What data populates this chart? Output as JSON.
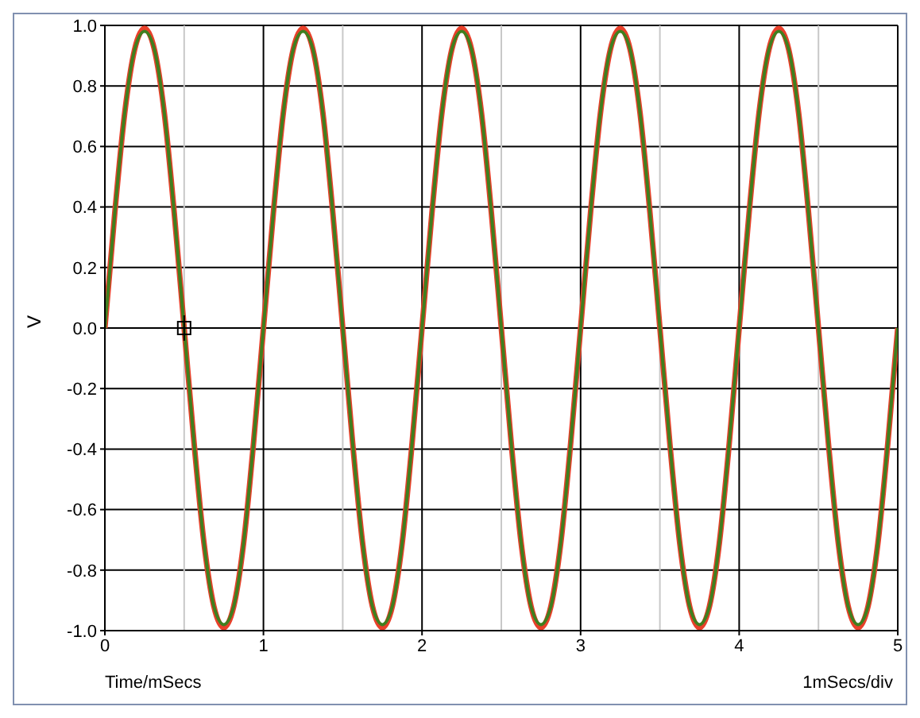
{
  "chart_data": {
    "type": "line",
    "xlabel": "Time/mSecs",
    "ylabel": "V",
    "annotations": [
      "1mSecs/div"
    ],
    "x": [
      0,
      0.0625,
      0.125,
      0.1875,
      0.25,
      0.3125,
      0.375,
      0.4375,
      0.5,
      0.5625,
      0.625,
      0.6875,
      0.75,
      0.8125,
      0.875,
      0.9375,
      1,
      1.0625,
      1.125,
      1.1875,
      1.25,
      1.3125,
      1.375,
      1.4375,
      1.5,
      1.5625,
      1.625,
      1.6875,
      1.75,
      1.8125,
      1.875,
      1.9375,
      2,
      2.0625,
      2.125,
      2.1875,
      2.25,
      2.3125,
      2.375,
      2.4375,
      2.5,
      2.5625,
      2.625,
      2.6875,
      2.75,
      2.8125,
      2.875,
      2.9375,
      3,
      3.0625,
      3.125,
      3.1875,
      3.25,
      3.3125,
      3.375,
      3.4375,
      3.5,
      3.5625,
      3.625,
      3.6875,
      3.75,
      3.8125,
      3.875,
      3.9375,
      4,
      4.0625,
      4.125,
      4.1875,
      4.25,
      4.3125,
      4.375,
      4.4375,
      4.5,
      4.5625,
      4.625,
      4.6875,
      4.75,
      4.8125,
      4.875,
      4.9375,
      5
    ],
    "series": [
      {
        "color": "#e8402a",
        "values": [
          0,
          0.38,
          0.71,
          0.92,
          0.99,
          0.92,
          0.71,
          0.38,
          0,
          -0.38,
          -0.71,
          -0.92,
          -0.99,
          -0.92,
          -0.71,
          -0.38,
          0,
          0.38,
          0.71,
          0.92,
          0.99,
          0.92,
          0.71,
          0.38,
          0,
          -0.38,
          -0.71,
          -0.92,
          -0.99,
          -0.92,
          -0.71,
          -0.38,
          0,
          0.38,
          0.71,
          0.92,
          0.99,
          0.92,
          0.71,
          0.38,
          0,
          -0.38,
          -0.71,
          -0.92,
          -0.99,
          -0.92,
          -0.71,
          -0.38,
          0,
          0.38,
          0.71,
          0.92,
          0.99,
          0.92,
          0.71,
          0.38,
          0,
          -0.38,
          -0.71,
          -0.92,
          -0.99,
          -0.92,
          -0.71,
          -0.38,
          0,
          0.38,
          0.71,
          0.92,
          0.99,
          0.92,
          0.71,
          0.38,
          0,
          -0.38,
          -0.71,
          -0.92,
          -0.99,
          -0.92,
          -0.71,
          -0.38,
          0
        ]
      },
      {
        "color": "#3f7f1f",
        "values": [
          0,
          0.38,
          0.71,
          0.92,
          0.98,
          0.92,
          0.71,
          0.38,
          0,
          -0.38,
          -0.71,
          -0.92,
          -0.98,
          -0.92,
          -0.71,
          -0.38,
          0,
          0.38,
          0.71,
          0.92,
          0.98,
          0.92,
          0.71,
          0.38,
          0,
          -0.38,
          -0.71,
          -0.92,
          -0.98,
          -0.92,
          -0.71,
          -0.38,
          0,
          0.38,
          0.71,
          0.92,
          0.98,
          0.92,
          0.71,
          0.38,
          0,
          -0.38,
          -0.71,
          -0.92,
          -0.98,
          -0.92,
          -0.71,
          -0.38,
          0,
          0.38,
          0.71,
          0.92,
          0.98,
          0.92,
          0.71,
          0.38,
          0,
          -0.38,
          -0.71,
          -0.92,
          -0.98,
          -0.92,
          -0.71,
          -0.38,
          0,
          0.38,
          0.71,
          0.92,
          0.98,
          0.92,
          0.71,
          0.38,
          0,
          -0.38,
          -0.71,
          -0.92,
          -0.98,
          -0.92,
          -0.71,
          -0.38,
          0
        ]
      }
    ],
    "xlim": [
      0,
      5
    ],
    "xticks": [
      0,
      1,
      2,
      3,
      4,
      5
    ],
    "ylim": [
      -1,
      1
    ],
    "yticks": [
      {
        "value": -1,
        "label": "-1.0"
      },
      {
        "value": -0.8,
        "label": "-0.8"
      },
      {
        "value": -0.6,
        "label": "-0.6"
      },
      {
        "value": -0.4,
        "label": "-0.4"
      },
      {
        "value": -0.2,
        "label": "-0.2"
      },
      {
        "value": 0,
        "label": "0.0"
      },
      {
        "value": 0.2,
        "label": "0.2"
      },
      {
        "value": 0.4,
        "label": "0.4"
      },
      {
        "value": 0.6,
        "label": "0.6"
      },
      {
        "value": 0.8,
        "label": "0.8"
      },
      {
        "value": 1,
        "label": "1.0"
      }
    ],
    "ref_lines": [
      {
        "axis": "x",
        "value": 0.5,
        "color": "#c8c8c8"
      },
      {
        "axis": "x",
        "value": 1.5,
        "color": "#c8c8c8"
      },
      {
        "axis": "x",
        "value": 2.5,
        "color": "#c8c8c8"
      },
      {
        "axis": "x",
        "value": 3.5,
        "color": "#c8c8c8"
      },
      {
        "axis": "x",
        "value": 4.5,
        "color": "#c8c8c8"
      }
    ],
    "grid": true,
    "marker": "none",
    "line_style": "solid"
  }
}
